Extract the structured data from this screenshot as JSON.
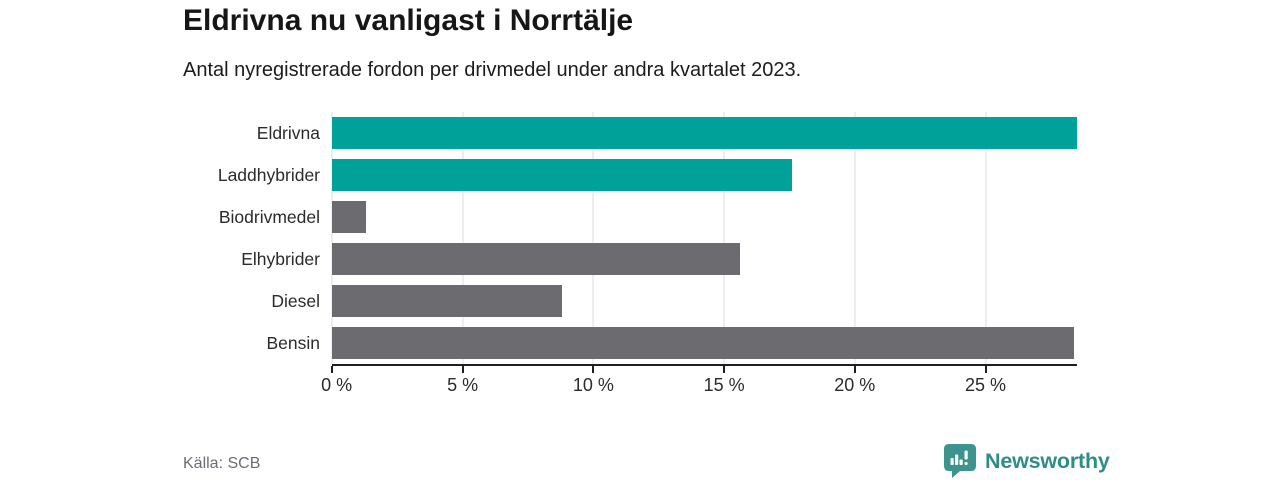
{
  "header": {
    "title": "Eldrivna nu vanligast i Norrtälje",
    "subtitle": "Antal nyregistrerade fordon per drivmedel under andra kvartalet 2023."
  },
  "chart_data": {
    "type": "bar",
    "orientation": "horizontal",
    "title": "Eldrivna nu vanligast i Norrtälje",
    "subtitle": "Antal nyregistrerade fordon per drivmedel under andra kvartalet 2023.",
    "categories": [
      "Eldrivna",
      "Laddhybrider",
      "Biodrivmedel",
      "Elhybrider",
      "Diesel",
      "Bensin"
    ],
    "values": [
      28.5,
      17.6,
      1.3,
      15.6,
      8.8,
      28.4
    ],
    "unit": "%",
    "bar_colors": [
      "#00a199",
      "#00a199",
      "#6c6b70",
      "#6c6b70",
      "#6c6b70",
      "#6c6b70"
    ],
    "x_ticks": [
      0,
      5,
      10,
      15,
      20,
      25
    ],
    "x_tick_labels": [
      "0 %",
      "5 %",
      "10 %",
      "15 %",
      "20 %",
      "25 %"
    ],
    "xlim": [
      0,
      28.5
    ],
    "xlabel": "",
    "ylabel": "",
    "grid": true,
    "legend": "none"
  },
  "footer": {
    "source": "Källa: SCB",
    "brand": "Newsworthy"
  },
  "colors": {
    "accent_teal": "#00a199",
    "neutral_gray": "#6c6b70",
    "brand_teal": "#2f8c86",
    "logo_bubble": "#3b948e",
    "gridline": "#dedede",
    "axis": "#1f1f1f"
  },
  "icons": {
    "newsworthy-logo-icon": "speech-bubble-with-bar-chart-and-exclamation"
  }
}
